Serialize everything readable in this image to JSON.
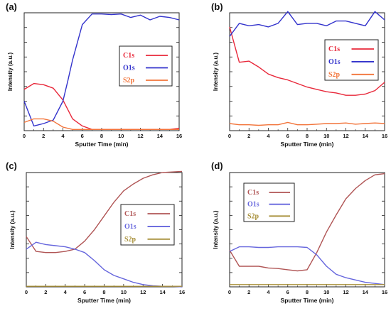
{
  "chart_data": [
    {
      "id": "a",
      "panel_label": "(a)",
      "type": "line",
      "xlabel": "Sputter Time (min)",
      "ylabel": "Intensity (a.u.)",
      "xlim": [
        0,
        16
      ],
      "ylim": [
        0,
        100
      ],
      "xticks": [
        "0",
        "2",
        "4",
        "6",
        "8",
        "10",
        "12",
        "14",
        "16"
      ],
      "legend_position": "right",
      "series": [
        {
          "name": "C1s",
          "color": "#e8283a",
          "x": [
            0,
            1,
            2,
            3,
            4,
            5,
            6,
            7,
            8,
            9,
            10,
            11,
            12,
            13,
            14,
            15,
            16
          ],
          "y": [
            35,
            40,
            39,
            36,
            26,
            10,
            4,
            1,
            1,
            1,
            1,
            1,
            1,
            1,
            1,
            1,
            2
          ]
        },
        {
          "name": "O1s",
          "color": "#3333cc",
          "x": [
            0,
            1,
            2,
            3,
            4,
            4.5,
            5,
            6,
            7,
            8,
            9,
            10,
            11,
            12,
            13,
            14,
            15,
            16
          ],
          "y": [
            25,
            4,
            6,
            9,
            25,
            42,
            60,
            90,
            99,
            99,
            98.5,
            99,
            96,
            98,
            94,
            97,
            96,
            94
          ]
        },
        {
          "name": "S2p",
          "color": "#f2743a",
          "x": [
            0,
            1,
            2,
            3,
            4,
            5,
            6,
            7,
            8,
            9,
            10,
            11,
            12,
            13,
            14,
            15,
            16
          ],
          "y": [
            7,
            10,
            10,
            8,
            3,
            1,
            1,
            1,
            1,
            1,
            1,
            1,
            1,
            1,
            1,
            1,
            1
          ]
        }
      ]
    },
    {
      "id": "b",
      "panel_label": "(b)",
      "type": "line",
      "xlabel": "Sputter Time (min)",
      "ylabel": "Intensity (a.u.)",
      "xlim": [
        0,
        16
      ],
      "ylim": [
        0,
        100
      ],
      "xticks": [
        "0",
        "2",
        "4",
        "6",
        "8",
        "10",
        "12",
        "14",
        "16"
      ],
      "legend_position": "right",
      "series": [
        {
          "name": "C1s",
          "color": "#e8283a",
          "x": [
            0,
            1,
            2,
            3,
            4,
            5,
            6,
            7,
            8,
            9,
            10,
            11,
            12,
            13,
            14,
            15,
            16
          ],
          "y": [
            88,
            58,
            59,
            54,
            48,
            45,
            43,
            40,
            37,
            35,
            33,
            32,
            30,
            30,
            31,
            34,
            41
          ]
        },
        {
          "name": "O1s",
          "color": "#3333cc",
          "x": [
            0,
            1,
            2,
            3,
            4,
            5,
            6,
            7,
            8,
            9,
            10,
            11,
            12,
            13,
            14,
            15,
            16
          ],
          "y": [
            80,
            91,
            89,
            90,
            88,
            91,
            101,
            90,
            91,
            91,
            89,
            93,
            93,
            91,
            89,
            101,
            94
          ]
        },
        {
          "name": "S2p",
          "color": "#f2743a",
          "x": [
            0,
            1,
            2,
            3,
            4,
            5,
            6,
            7,
            8,
            9,
            10,
            11,
            12,
            13,
            14,
            15,
            16
          ],
          "y": [
            6,
            5,
            5,
            4.5,
            5,
            5,
            7,
            5,
            5,
            5.5,
            6,
            6,
            6.5,
            5.5,
            6,
            6.5,
            6
          ]
        }
      ]
    },
    {
      "id": "c",
      "panel_label": "(c)",
      "type": "line",
      "xlabel": "Sputter Time (min)",
      "ylabel": "Intensity (a.u.)",
      "xlim": [
        0,
        16
      ],
      "ylim": [
        0,
        100
      ],
      "xticks": [
        "0",
        "2",
        "4",
        "6",
        "8",
        "10",
        "12",
        "14",
        "16"
      ],
      "legend_position": "right",
      "series": [
        {
          "name": "C1s",
          "color": "#b05555",
          "x": [
            0,
            1,
            2,
            3,
            4,
            5,
            6,
            7,
            8,
            9,
            10,
            11,
            12,
            13,
            14,
            15,
            16
          ],
          "y": [
            44,
            31,
            30,
            30,
            31,
            33,
            40,
            50,
            62,
            74,
            84,
            90,
            95,
            98,
            100,
            100.5,
            101
          ]
        },
        {
          "name": "O1s",
          "color": "#6666dd",
          "x": [
            0,
            1,
            2,
            3,
            4,
            5,
            6,
            7,
            8,
            9,
            10,
            11,
            12,
            13,
            14,
            15,
            16
          ],
          "y": [
            33,
            39,
            37,
            36,
            35,
            33,
            30,
            23,
            15,
            10,
            7,
            4,
            2,
            1,
            0.5,
            0.5,
            0
          ]
        },
        {
          "name": "S2p",
          "color": "#a8903a",
          "x": [
            0,
            1,
            2,
            3,
            4,
            5,
            6,
            7,
            8,
            9,
            10,
            11,
            12,
            13,
            14,
            15,
            16
          ],
          "y": [
            0.5,
            0.5,
            0.5,
            0.5,
            0.5,
            0.5,
            0.5,
            0.5,
            0.5,
            0.5,
            0.5,
            0.5,
            0.5,
            0.5,
            0.5,
            0.5,
            0.5
          ]
        }
      ]
    },
    {
      "id": "d",
      "panel_label": "(d)",
      "type": "line",
      "xlabel": "Sputter Time (min)",
      "ylabel": "Intensity (a.u.)",
      "xlim": [
        0,
        16
      ],
      "ylim": [
        0,
        100
      ],
      "xticks": [
        "0",
        "2",
        "4",
        "6",
        "8",
        "10",
        "12",
        "14",
        "16"
      ],
      "legend_position": "top-left",
      "series": [
        {
          "name": "C1s",
          "color": "#b05555",
          "x": [
            0,
            1,
            2,
            3,
            4,
            5,
            6,
            7,
            8,
            9,
            10,
            11,
            12,
            13,
            14,
            15,
            16
          ],
          "y": [
            32,
            18,
            18,
            18,
            16.5,
            16,
            15,
            14,
            15,
            30,
            48,
            63,
            77,
            86,
            93,
            98,
            99
          ]
        },
        {
          "name": "O1s",
          "color": "#6666dd",
          "x": [
            0,
            1,
            2,
            3,
            4,
            5,
            6,
            7,
            8,
            9,
            10,
            11,
            12,
            13,
            14,
            15,
            16
          ],
          "y": [
            31,
            35,
            35,
            34.5,
            34.5,
            35,
            35,
            35,
            34.5,
            28,
            18,
            11,
            8,
            6,
            4,
            3,
            2
          ]
        },
        {
          "name": "S2p",
          "color": "#a8903a",
          "x": [
            0,
            1,
            2,
            3,
            4,
            5,
            6,
            7,
            8,
            9,
            10,
            11,
            12,
            13,
            14,
            15,
            16
          ],
          "y": [
            2,
            2,
            2,
            2,
            2,
            2,
            2,
            2,
            2,
            2,
            2,
            2,
            2,
            2,
            2,
            2,
            2
          ]
        }
      ]
    }
  ]
}
